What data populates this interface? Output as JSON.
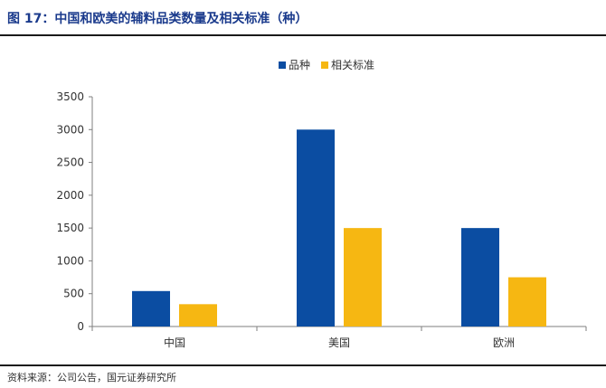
{
  "figure": {
    "title": "图 17：中国和欧美的辅料品类数量及相关标准（种）",
    "source": "资料来源：公司公告，国元证券研究所"
  },
  "colors": {
    "series_1": "#0b4da2",
    "series_2": "#f6b712",
    "axis": "#7f7f7f",
    "title": "#1a3a8c"
  },
  "chart_data": {
    "type": "bar",
    "categories": [
      "中国",
      "美国",
      "欧洲"
    ],
    "series": [
      {
        "name": "品种",
        "values": [
          540,
          3000,
          1500
        ]
      },
      {
        "name": "相关标准",
        "values": [
          340,
          1500,
          750
        ]
      }
    ],
    "ylim": [
      0,
      3500
    ],
    "yticks": [
      0,
      500,
      1000,
      1500,
      2000,
      2500,
      3000,
      3500
    ],
    "legend_position": "top-center",
    "grid": false,
    "xlabel": "",
    "ylabel": ""
  }
}
